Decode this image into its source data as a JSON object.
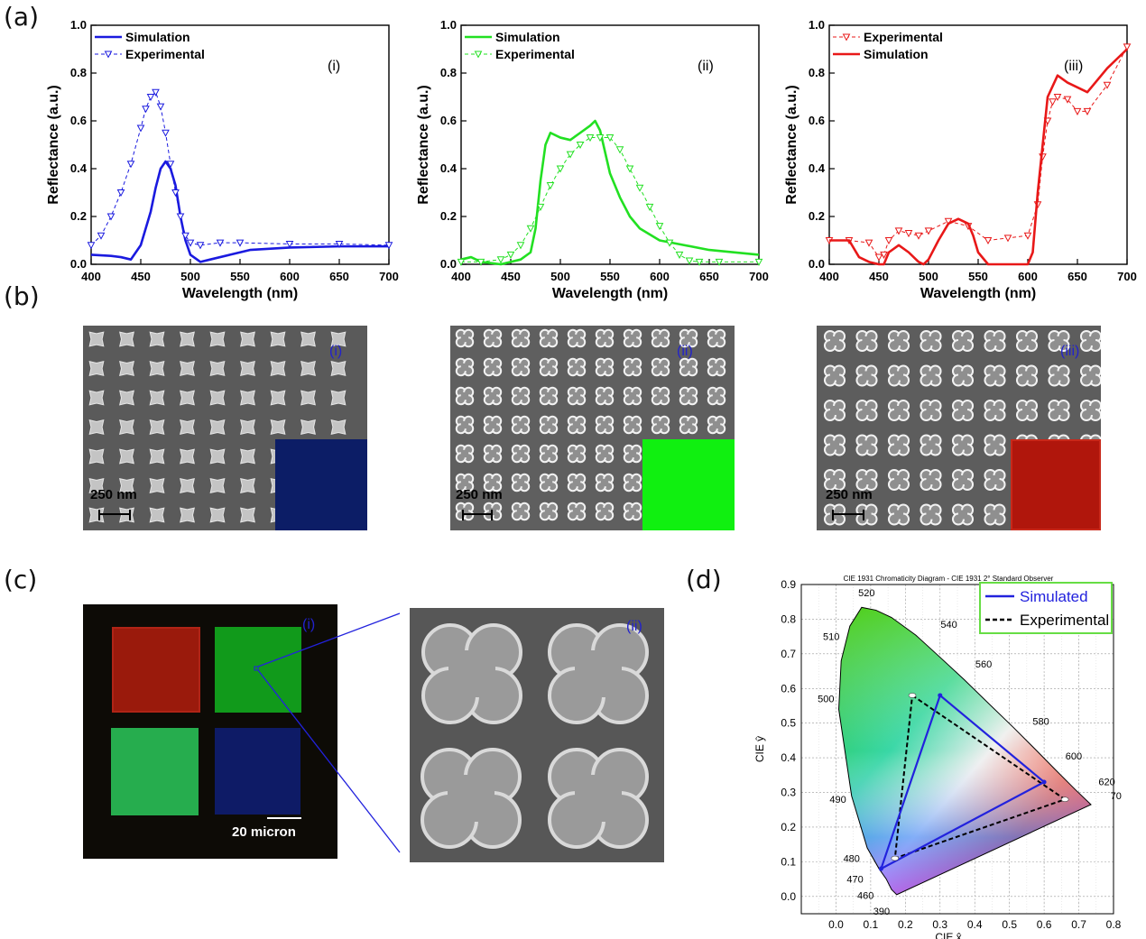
{
  "panel_labels": {
    "a": "(a)",
    "b": "(b)",
    "c": "(c)",
    "d": "(d)"
  },
  "panel_a": {
    "plots": [
      {
        "roman": "(i)",
        "legend": [
          "Simulation",
          "Experimental"
        ],
        "color": "#1a1adf",
        "xlabel": "Wavelength (nm)",
        "ylabel": "Reflectance (a.u.)"
      },
      {
        "roman": "(ii)",
        "legend": [
          "Simulation",
          "Experimental"
        ],
        "color": "#22e022",
        "xlabel": "Wavelength (nm)",
        "ylabel": "Reflectance (a.u.)"
      },
      {
        "roman": "(iii)",
        "legend": [
          "Experimental",
          "Simulation"
        ],
        "color": "#e81818",
        "xlabel": "Wavelength (nm)",
        "ylabel": "Reflectance (a.u.)"
      }
    ]
  },
  "panel_b": {
    "images": [
      {
        "roman": "(i)",
        "scale": "250 nm",
        "swatch_color": "#0c1d66"
      },
      {
        "roman": "(ii)",
        "scale": "250 nm",
        "swatch_color": "#10f010"
      },
      {
        "roman": "(iii)",
        "scale": "250 nm",
        "swatch_color": "#b0160c"
      }
    ]
  },
  "panel_c": {
    "left": {
      "roman": "(i)",
      "scale": "20 micron",
      "squares": {
        "red": "#9a1a0c",
        "green_top": "#119a1b",
        "green_bottom": "#26ad4e",
        "blue": "#0e1b66"
      }
    },
    "right": {
      "roman": "(ii)"
    }
  },
  "panel_d": {
    "title": "CIE 1931 Chromaticity Diagram - CIE 1931 2° Standard Observer",
    "xlabel": "CIE x̂",
    "ylabel": "CIE ŷ",
    "legend": [
      "Simulated",
      "Experimental"
    ],
    "locus_labels": [
      "520",
      "540",
      "510",
      "560",
      "500",
      "580",
      "600",
      "620",
      "70",
      "490",
      "480",
      "470",
      "460",
      "390"
    ]
  },
  "chart_data": [
    {
      "type": "line",
      "title": "(i)",
      "xlabel": "Wavelength (nm)",
      "ylabel": "Reflectance (a.u.)",
      "xlim": [
        400,
        700
      ],
      "ylim": [
        0,
        1.0
      ],
      "xticks": [
        400,
        450,
        500,
        550,
        600,
        650,
        700
      ],
      "yticks": [
        0.0,
        0.2,
        0.4,
        0.6,
        0.8,
        1.0
      ],
      "legend_position": "top-left",
      "series": [
        {
          "name": "Simulation",
          "style": "solid",
          "x": [
            400,
            420,
            430,
            440,
            450,
            460,
            465,
            470,
            475,
            480,
            485,
            490,
            495,
            500,
            510,
            520,
            540,
            560,
            600,
            650,
            700
          ],
          "y": [
            0.04,
            0.035,
            0.03,
            0.02,
            0.08,
            0.22,
            0.32,
            0.4,
            0.43,
            0.4,
            0.33,
            0.2,
            0.1,
            0.04,
            0.01,
            0.02,
            0.04,
            0.06,
            0.07,
            0.075,
            0.075
          ]
        },
        {
          "name": "Experimental",
          "style": "dashed-triangle",
          "x": [
            400,
            410,
            420,
            430,
            440,
            450,
            455,
            460,
            465,
            470,
            475,
            480,
            485,
            490,
            495,
            500,
            510,
            530,
            550,
            600,
            650,
            700
          ],
          "y": [
            0.08,
            0.12,
            0.2,
            0.3,
            0.42,
            0.57,
            0.65,
            0.7,
            0.72,
            0.66,
            0.55,
            0.42,
            0.3,
            0.2,
            0.12,
            0.09,
            0.08,
            0.09,
            0.09,
            0.085,
            0.085,
            0.08
          ]
        }
      ]
    },
    {
      "type": "line",
      "title": "(ii)",
      "xlabel": "Wavelength (nm)",
      "ylabel": "Reflectance (a.u.)",
      "xlim": [
        400,
        700
      ],
      "ylim": [
        0,
        1.0
      ],
      "xticks": [
        400,
        450,
        500,
        550,
        600,
        650,
        700
      ],
      "yticks": [
        0.0,
        0.2,
        0.4,
        0.6,
        0.8,
        1.0
      ],
      "legend_position": "top-left",
      "series": [
        {
          "name": "Simulation",
          "style": "solid",
          "x": [
            400,
            410,
            420,
            440,
            460,
            470,
            475,
            480,
            485,
            490,
            500,
            510,
            520,
            530,
            535,
            540,
            545,
            550,
            560,
            570,
            580,
            600,
            650,
            700
          ],
          "y": [
            0.02,
            0.03,
            0.01,
            0.0,
            0.02,
            0.05,
            0.15,
            0.35,
            0.5,
            0.55,
            0.53,
            0.52,
            0.55,
            0.58,
            0.6,
            0.56,
            0.47,
            0.38,
            0.28,
            0.2,
            0.15,
            0.1,
            0.06,
            0.04
          ]
        },
        {
          "name": "Experimental",
          "style": "dashed-triangle",
          "x": [
            400,
            420,
            440,
            450,
            460,
            470,
            480,
            490,
            500,
            510,
            520,
            530,
            540,
            550,
            560,
            570,
            580,
            590,
            600,
            610,
            620,
            630,
            640,
            660,
            700
          ],
          "y": [
            0.01,
            0.01,
            0.02,
            0.04,
            0.08,
            0.15,
            0.24,
            0.33,
            0.4,
            0.46,
            0.5,
            0.53,
            0.53,
            0.53,
            0.48,
            0.4,
            0.32,
            0.24,
            0.16,
            0.09,
            0.04,
            0.015,
            0.01,
            0.01,
            0.01
          ]
        }
      ]
    },
    {
      "type": "line",
      "title": "(iii)",
      "xlabel": "Wavelength (nm)",
      "ylabel": "Reflectance (a.u.)",
      "xlim": [
        400,
        700
      ],
      "ylim": [
        0,
        1.0
      ],
      "xticks": [
        400,
        450,
        500,
        550,
        600,
        650,
        700
      ],
      "yticks": [
        0.0,
        0.2,
        0.4,
        0.6,
        0.8,
        1.0
      ],
      "legend_position": "top-left",
      "series": [
        {
          "name": "Experimental",
          "style": "dashed-triangle",
          "x": [
            400,
            420,
            440,
            450,
            455,
            460,
            470,
            480,
            490,
            500,
            520,
            540,
            560,
            580,
            600,
            610,
            615,
            620,
            625,
            630,
            640,
            650,
            660,
            680,
            700
          ],
          "y": [
            0.1,
            0.1,
            0.09,
            0.03,
            0.04,
            0.1,
            0.14,
            0.13,
            0.12,
            0.14,
            0.18,
            0.16,
            0.1,
            0.11,
            0.12,
            0.25,
            0.45,
            0.6,
            0.68,
            0.7,
            0.69,
            0.64,
            0.64,
            0.75,
            0.91
          ]
        },
        {
          "name": "Simulation",
          "style": "solid",
          "x": [
            400,
            410,
            420,
            430,
            440,
            450,
            455,
            460,
            470,
            480,
            490,
            495,
            500,
            510,
            520,
            530,
            540,
            545,
            550,
            560,
            580,
            600,
            605,
            610,
            620,
            630,
            640,
            660,
            680,
            700
          ],
          "y": [
            0.1,
            0.1,
            0.1,
            0.03,
            0.01,
            0.0,
            0.0,
            0.05,
            0.08,
            0.05,
            0.01,
            0.0,
            0.02,
            0.1,
            0.17,
            0.19,
            0.17,
            0.12,
            0.05,
            0.0,
            0.0,
            0.0,
            0.05,
            0.3,
            0.7,
            0.79,
            0.76,
            0.72,
            0.82,
            0.9
          ]
        }
      ]
    },
    {
      "type": "scatter",
      "title": "CIE 1931 Chromaticity Diagram - CIE 1931 2° Standard Observer",
      "xlabel": "CIE x̂",
      "ylabel": "CIE ŷ",
      "xlim": [
        -0.1,
        0.8
      ],
      "ylim": [
        -0.05,
        0.9
      ],
      "xticks": [
        0.0,
        0.1,
        0.2,
        0.3,
        0.4,
        0.5,
        0.6,
        0.7,
        0.8
      ],
      "yticks": [
        0.0,
        0.1,
        0.2,
        0.3,
        0.4,
        0.5,
        0.6,
        0.7,
        0.8,
        0.9
      ],
      "grid": true,
      "legend_position": "top-right",
      "series": [
        {
          "name": "Simulated",
          "style": "solid-triangle",
          "x": [
            0.3,
            0.6,
            0.13,
            0.3
          ],
          "y": [
            0.58,
            0.33,
            0.08,
            0.58
          ]
        },
        {
          "name": "Experimental",
          "style": "dashed-triangle",
          "x": [
            0.22,
            0.66,
            0.17,
            0.22
          ],
          "y": [
            0.58,
            0.28,
            0.11,
            0.58
          ]
        }
      ]
    }
  ]
}
